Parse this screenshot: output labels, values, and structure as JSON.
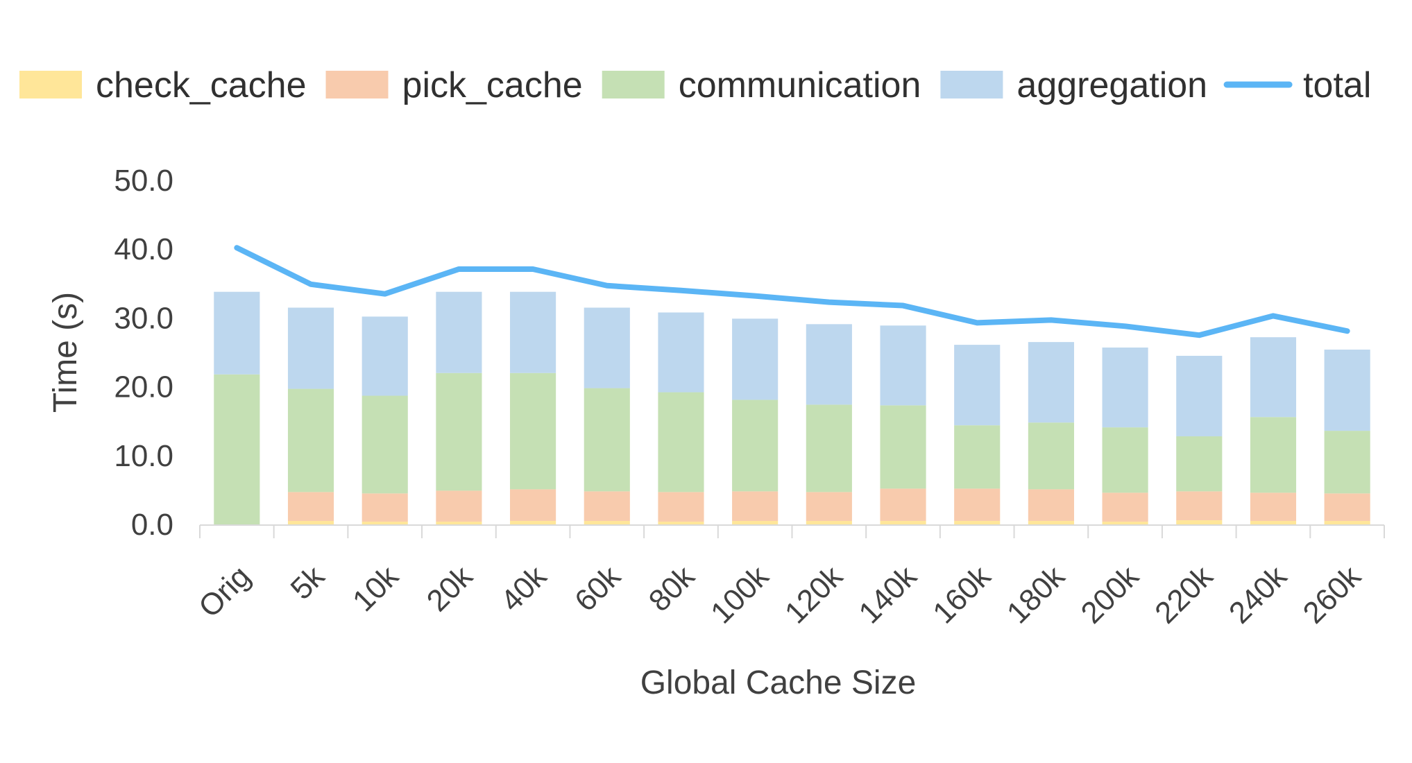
{
  "chart_data": {
    "type": "bar",
    "stacked": true,
    "categories": [
      "Orig",
      "5k",
      "10k",
      "20k",
      "40k",
      "60k",
      "80k",
      "100k",
      "120k",
      "140k",
      "160k",
      "180k",
      "200k",
      "220k",
      "240k",
      "260k"
    ],
    "series": [
      {
        "name": "check_cache",
        "kind": "bar",
        "color": "#FFE699",
        "values": [
          0.0,
          0.5,
          0.4,
          0.4,
          0.5,
          0.5,
          0.4,
          0.5,
          0.5,
          0.5,
          0.5,
          0.5,
          0.4,
          0.6,
          0.5,
          0.5
        ]
      },
      {
        "name": "pick_cache",
        "kind": "bar",
        "color": "#F8CBAD",
        "values": [
          0.0,
          4.2,
          4.1,
          4.5,
          4.6,
          4.3,
          4.3,
          4.3,
          4.2,
          4.7,
          4.7,
          4.6,
          4.2,
          4.2,
          4.1,
          4.0
        ]
      },
      {
        "name": "communication",
        "kind": "bar",
        "color": "#C5E0B4",
        "values": [
          21.8,
          15.0,
          14.2,
          17.1,
          16.9,
          15.0,
          14.5,
          13.3,
          12.7,
          12.1,
          9.2,
          9.7,
          9.5,
          8.0,
          11.0,
          9.1
        ]
      },
      {
        "name": "aggregation",
        "kind": "bar",
        "color": "#BDD7EE",
        "values": [
          12.0,
          11.8,
          11.5,
          11.8,
          11.8,
          11.7,
          11.6,
          11.8,
          11.7,
          11.6,
          11.7,
          11.7,
          11.6,
          11.7,
          11.6,
          11.8
        ]
      },
      {
        "name": "total",
        "kind": "line",
        "color": "#5BB5F5",
        "values": [
          40.2,
          34.9,
          33.5,
          37.1,
          37.1,
          34.7,
          34.0,
          33.2,
          32.3,
          31.8,
          29.3,
          29.7,
          28.8,
          27.5,
          30.3,
          28.1
        ]
      }
    ],
    "ylabel": "Time (s)",
    "xlabel": "Global Cache Size",
    "ylim": [
      0,
      50
    ],
    "yticks": [
      "0.0",
      "10.0",
      "20.0",
      "30.0",
      "40.0",
      "50.0"
    ],
    "grid": false,
    "legend": "top"
  }
}
